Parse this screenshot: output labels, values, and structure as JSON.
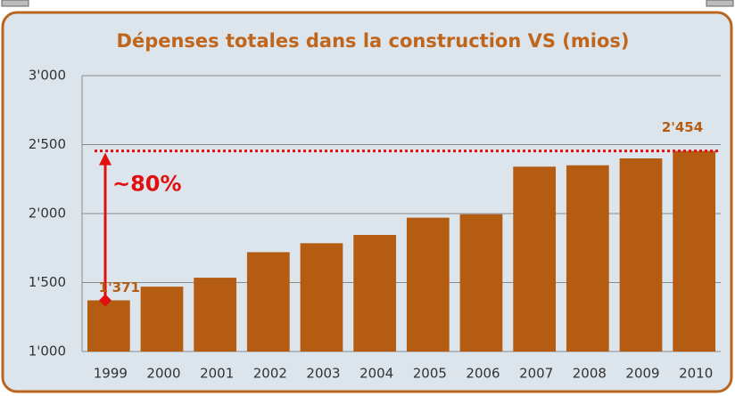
{
  "chart_data": {
    "type": "bar",
    "title": "Dépenses totales dans la construction VS (mios)",
    "categories": [
      "1999",
      "2000",
      "2001",
      "2002",
      "2003",
      "2004",
      "2005",
      "2006",
      "2007",
      "2008",
      "2009",
      "2010"
    ],
    "values": [
      1371,
      1470,
      1535,
      1720,
      1785,
      1845,
      1970,
      1995,
      2340,
      2350,
      2400,
      2454
    ],
    "value_labels": [
      "1'371",
      null,
      null,
      null,
      null,
      null,
      null,
      null,
      null,
      null,
      null,
      "2'454"
    ],
    "color": "#b35c12",
    "ylim": [
      1000,
      3000
    ],
    "yticks": [
      {
        "value": 1000,
        "label": "1'000"
      },
      {
        "value": 1500,
        "label": "1'500"
      },
      {
        "value": 2000,
        "label": "2'000"
      },
      {
        "value": 2500,
        "label": "2'500"
      },
      {
        "value": 3000,
        "label": "3'000"
      }
    ],
    "grid": true,
    "annotations": [
      "~80%"
    ]
  }
}
